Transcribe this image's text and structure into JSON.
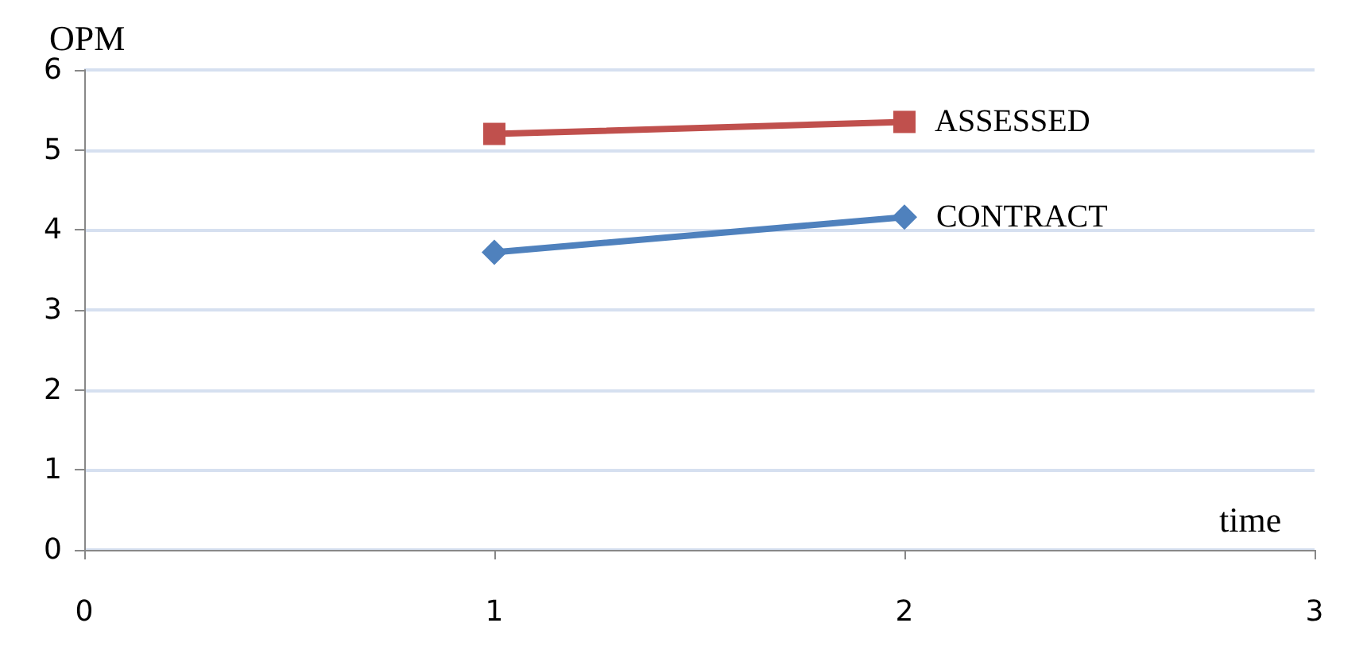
{
  "chart_data": {
    "type": "line",
    "ylabel": "OPM",
    "xlabel": "time",
    "xlim": [
      0,
      3
    ],
    "xticks": [
      0,
      1,
      2,
      3
    ],
    "ylim": [
      0,
      6
    ],
    "yticks": [
      0,
      1,
      2,
      3,
      4,
      5,
      6
    ],
    "grid": "y",
    "legend": false,
    "line_style": "solid",
    "x": [
      1,
      2
    ],
    "series": [
      {
        "name": "ASSESSED",
        "color": "#c0504d",
        "marker": "square",
        "values": [
          5.2,
          5.35
        ]
      },
      {
        "name": "CONTRACT",
        "color": "#4f81bd",
        "marker": "diamond",
        "values": [
          3.72,
          4.16
        ]
      }
    ]
  }
}
